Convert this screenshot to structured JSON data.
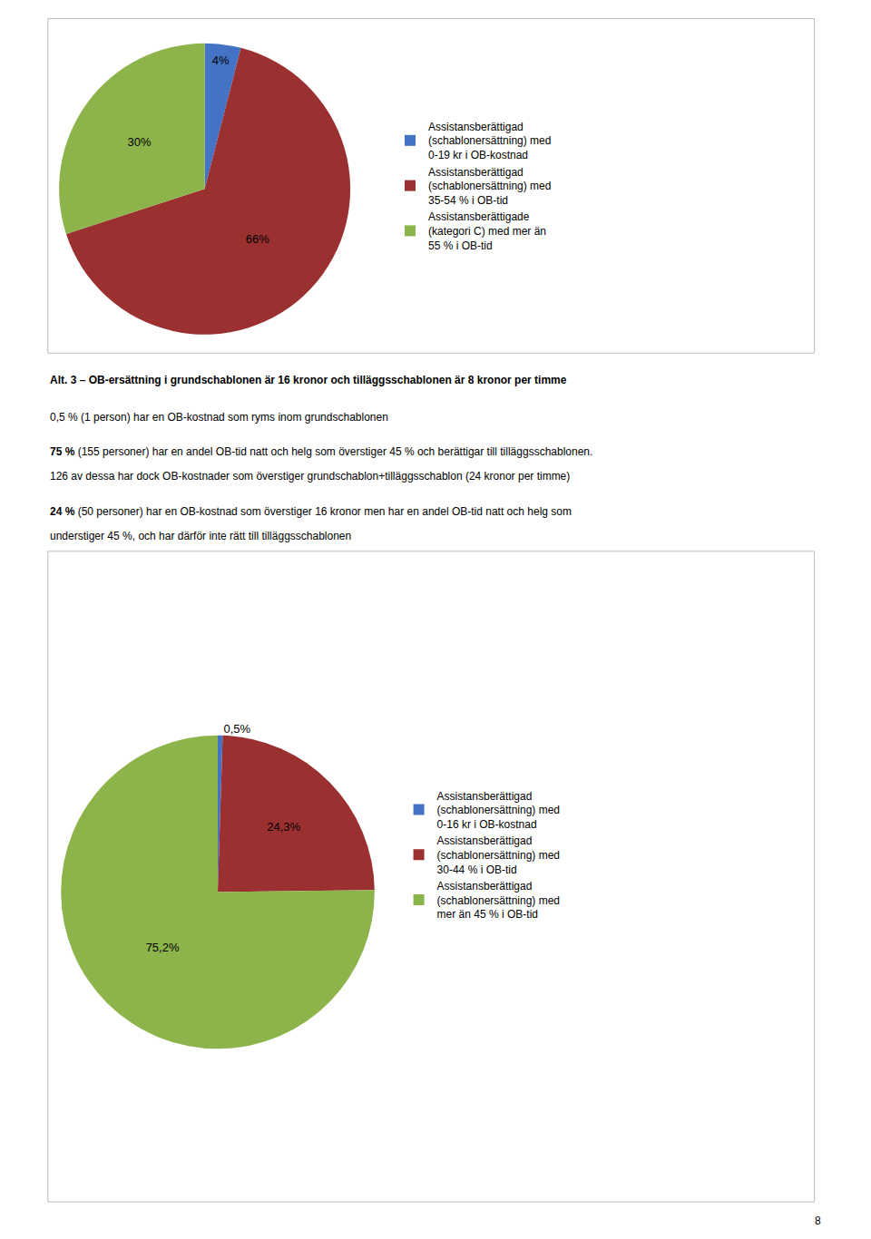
{
  "chart_data": [
    {
      "type": "pie",
      "categories": [
        "Assistansberättigad\n(schablonersättning) med\n0-19 kr i OB-kostnad",
        "Assistansberättigad\n(schablonersättning) med\n35-54 % i OB-tid",
        "Assistansberättigade\n(kategori C) med mer än\n55 % i OB-tid"
      ],
      "values": [
        4,
        66,
        30
      ],
      "value_labels": [
        "4%",
        "66%",
        "30%"
      ],
      "colors": [
        "#4472C4",
        "#9B3030",
        "#8DB44A"
      ],
      "data_labels": true
    },
    {
      "type": "pie",
      "categories": [
        "Assistansberättigad\n(schablonersättning) med\n0-16 kr i OB-kostnad",
        "Assistansberättigad\n(schablonersättning) med\n30-44 % i OB-tid",
        "Assistansberättigad\n(schablonersättning) med\nmer än 45 % i OB-tid"
      ],
      "values": [
        0.5,
        24.3,
        75.2
      ],
      "value_labels": [
        "0,5%",
        "24,3%",
        "75,2%"
      ],
      "colors": [
        "#4472C4",
        "#9B3030",
        "#8DB44A"
      ],
      "data_labels": true,
      "annotations": [
        [
          "Alt. 3 – OB-ersättning i grundschablonen är 16 kronor och tilläggsschablonen är 8 kronor per timme"
        ],
        [
          "0,5 % (1 person) har en OB-kostnad som ryms inom grundschablonen"
        ],
        [
          "75 %",
          " (155 personer) har en andel OB-tid natt och helg som överstiger 45 % och berättigar till tilläggsschablonen."
        ],
        [
          "126 av dessa har dock OB-kostnader som överstiger grundschablon+tilläggsschablon (24 kronor per timme)"
        ],
        [
          "24 %",
          " (50 personer) har en OB-kostnad som överstiger 16 kronor men har en andel OB-tid natt och helg som"
        ],
        [
          "understiger 45 %, och har därför inte rätt till tilläggsschablonen"
        ],
        [
          "8"
        ]
      ]
    }
  ]
}
